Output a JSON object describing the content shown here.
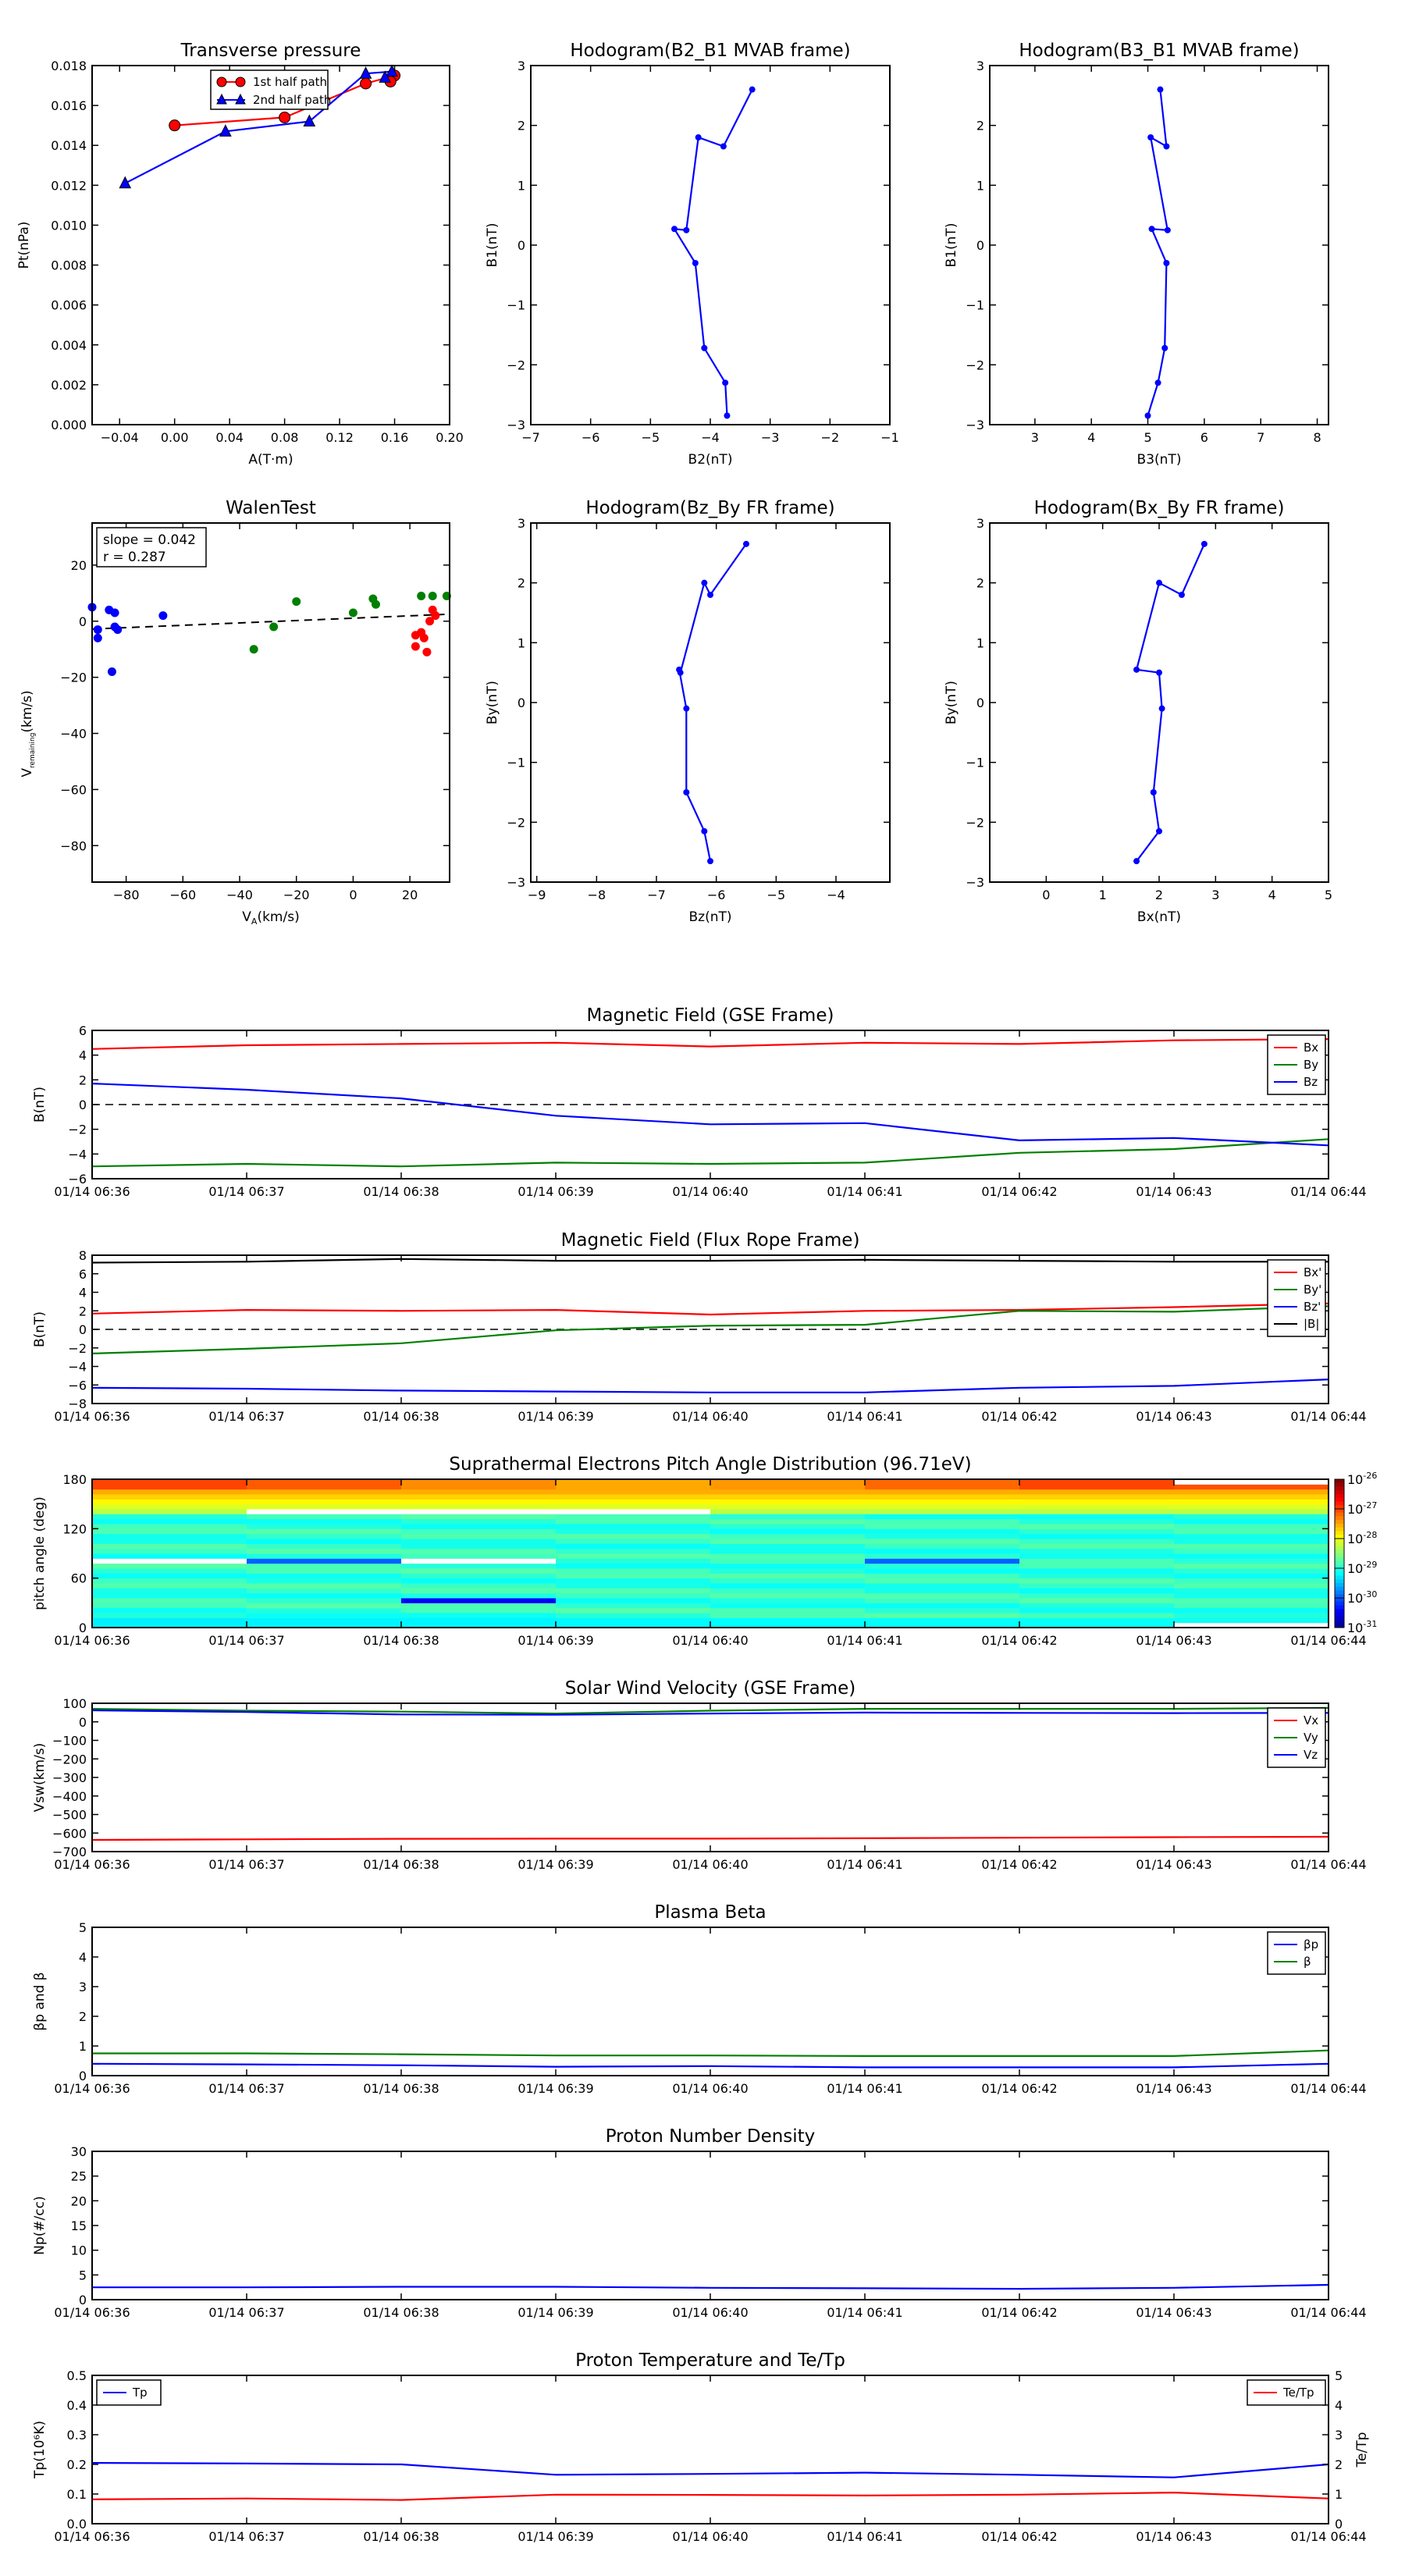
{
  "chart_data": [
    {
      "id": "pt",
      "type": "line",
      "title": "Transverse pressure",
      "xlabel": "A(T·m)",
      "ylabel": "Pt(nPa)",
      "xlim": [
        -0.06,
        0.2
      ],
      "ylim": [
        0,
        0.018
      ],
      "xticks": [
        -0.04,
        0.0,
        0.04,
        0.08,
        0.12,
        0.16,
        0.2
      ],
      "xtick_labels": [
        "−0.04",
        "0.00",
        "0.04",
        "0.08",
        "0.12",
        "0.16",
        "0.20"
      ],
      "yticks": [
        0,
        0.002,
        0.004,
        0.006,
        0.008,
        0.01,
        0.012,
        0.014,
        0.016,
        0.018
      ],
      "ytick_labels": [
        "0.000",
        "0.002",
        "0.004",
        "0.006",
        "0.008",
        "0.010",
        "0.012",
        "0.014",
        "0.016",
        "0.018"
      ],
      "legend_position": "top-right",
      "series": [
        {
          "name": "1st half path",
          "color": "#ff0000",
          "marker": "circle",
          "x": [
            0.0,
            0.08,
            0.139,
            0.16,
            0.157
          ],
          "y": [
            0.015,
            0.0154,
            0.0171,
            0.0175,
            0.0172
          ]
        },
        {
          "name": "2nd half path",
          "color": "#0000ff",
          "marker": "triangle",
          "x": [
            -0.036,
            0.037,
            0.098,
            0.139,
            0.158,
            0.153
          ],
          "y": [
            0.0121,
            0.0147,
            0.0152,
            0.0176,
            0.0177,
            0.0174
          ]
        }
      ]
    },
    {
      "id": "h1",
      "type": "line",
      "title": "Hodogram(B2_B1 MVAB frame)",
      "xlabel": "B2(nT)",
      "ylabel": "B1(nT)",
      "xlim": [
        -7,
        -1
      ],
      "ylim": [
        -3,
        3
      ],
      "xticks": [
        -7,
        -6,
        -5,
        -4,
        -3,
        -2,
        -1
      ],
      "xtick_labels": [
        "−7",
        "−6",
        "−5",
        "−4",
        "−3",
        "−2",
        "−1"
      ],
      "yticks": [
        -3,
        -2,
        -1,
        0,
        1,
        2,
        3
      ],
      "ytick_labels": [
        "−3",
        "−2",
        "−1",
        "0",
        "1",
        "2",
        "3"
      ],
      "series": [
        {
          "color": "#0000ff",
          "marker": "dot",
          "x": [
            -3.3,
            -3.78,
            -4.2,
            -4.4,
            -4.6,
            -4.25,
            -4.1,
            -3.75,
            -3.72
          ],
          "y": [
            2.6,
            1.65,
            1.8,
            0.25,
            0.27,
            -0.3,
            -1.72,
            -2.3,
            -2.85
          ]
        }
      ]
    },
    {
      "id": "h2",
      "type": "line",
      "title": "Hodogram(B3_B1 MVAB frame)",
      "xlabel": "B3(nT)",
      "ylabel": "B1(nT)",
      "xlim": [
        2.2,
        8.2
      ],
      "ylim": [
        -3,
        3
      ],
      "xticks": [
        3,
        4,
        5,
        6,
        7,
        8
      ],
      "xtick_labels": [
        "3",
        "4",
        "5",
        "6",
        "7",
        "8"
      ],
      "yticks": [
        -3,
        -2,
        -1,
        0,
        1,
        2,
        3
      ],
      "ytick_labels": [
        "−3",
        "−2",
        "−1",
        "0",
        "1",
        "2",
        "3"
      ],
      "series": [
        {
          "color": "#0000ff",
          "marker": "dot",
          "x": [
            5.22,
            5.33,
            5.05,
            5.35,
            5.07,
            5.33,
            5.3,
            5.18,
            5.0
          ],
          "y": [
            2.6,
            1.65,
            1.8,
            0.25,
            0.27,
            -0.3,
            -1.72,
            -2.3,
            -2.85
          ]
        }
      ]
    },
    {
      "id": "walen",
      "type": "scatter",
      "title": "WalenTest",
      "xlabel": "V",
      "xlabel_sub": "A",
      "xlabel_tail": "(km/s)",
      "ylabel": "V",
      "ylabel_sub": "remaining",
      "ylabel_tail": "(km/s)",
      "xlim": [
        -92,
        34
      ],
      "ylim": [
        -93,
        35
      ],
      "xticks": [
        -80,
        -60,
        -40,
        -20,
        0,
        20
      ],
      "xtick_labels": [
        "−80",
        "−60",
        "−40",
        "−20",
        "0",
        "20"
      ],
      "yticks": [
        -80,
        -60,
        -40,
        -20,
        0,
        20
      ],
      "ytick_labels": [
        "−80",
        "−60",
        "−40",
        "−20",
        "0",
        "20"
      ],
      "annotation": [
        "slope = 0.042",
        "r = 0.287"
      ],
      "fit_line": {
        "x": [
          -92,
          34
        ],
        "y": [
          -2.8,
          2.5
        ]
      },
      "series": [
        {
          "color": "#0000ff",
          "x": [
            -92,
            -90,
            -90,
            -86,
            -84,
            -84,
            -83,
            -85,
            -67
          ],
          "y": [
            5,
            -3,
            -6,
            4,
            3,
            -2,
            -3,
            -18,
            2
          ]
        },
        {
          "color": "#008000",
          "x": [
            -35,
            -28,
            -20,
            0,
            7,
            8,
            24,
            28,
            33
          ],
          "y": [
            -10,
            -2,
            7,
            3,
            8,
            6,
            9,
            9,
            9
          ]
        },
        {
          "color": "#ff0000",
          "x": [
            22,
            22,
            24,
            25,
            26,
            27,
            28,
            29
          ],
          "y": [
            -5,
            -9,
            -4,
            -6,
            -11,
            0,
            4,
            2
          ]
        }
      ]
    },
    {
      "id": "h3",
      "type": "line",
      "title": "Hodogram(Bz_By FR frame)",
      "xlabel": "Bz(nT)",
      "ylabel": "By(nT)",
      "xlim": [
        -9.1,
        -3.1
      ],
      "ylim": [
        -3,
        3
      ],
      "xticks": [
        -9,
        -8,
        -7,
        -6,
        -5,
        -4
      ],
      "xtick_labels": [
        "−9",
        "−8",
        "−7",
        "−6",
        "−5",
        "−4"
      ],
      "yticks": [
        -3,
        -2,
        -1,
        0,
        1,
        2,
        3
      ],
      "ytick_labels": [
        "−3",
        "−2",
        "−1",
        "0",
        "1",
        "2",
        "3"
      ],
      "series": [
        {
          "color": "#0000ff",
          "marker": "dot",
          "x": [
            -5.5,
            -6.1,
            -6.2,
            -6.6,
            -6.62,
            -6.5,
            -6.5,
            -6.2,
            -6.1
          ],
          "y": [
            2.65,
            1.8,
            2.0,
            0.5,
            0.55,
            -0.1,
            -1.5,
            -2.15,
            -2.65
          ]
        }
      ]
    },
    {
      "id": "h4",
      "type": "line",
      "title": "Hodogram(Bx_By FR frame)",
      "xlabel": "Bx(nT)",
      "ylabel": "By(nT)",
      "xlim": [
        -1,
        5
      ],
      "ylim": [
        -3,
        3
      ],
      "xticks": [
        0,
        1,
        2,
        3,
        4,
        5
      ],
      "xtick_labels": [
        "0",
        "1",
        "2",
        "3",
        "4",
        "5"
      ],
      "yticks": [
        -3,
        -2,
        -1,
        0,
        1,
        2,
        3
      ],
      "ytick_labels": [
        "−3",
        "−2",
        "−1",
        "0",
        "1",
        "2",
        "3"
      ],
      "series": [
        {
          "color": "#0000ff",
          "marker": "dot",
          "x": [
            2.8,
            2.4,
            2.0,
            1.6,
            2.0,
            2.05,
            1.9,
            2.0,
            1.6
          ],
          "y": [
            2.65,
            1.8,
            2.0,
            0.55,
            0.5,
            -0.1,
            -1.5,
            -2.15,
            -2.65
          ]
        }
      ]
    },
    {
      "id": "bgse",
      "type": "line",
      "title": "Magnetic Field (GSE Frame)",
      "ylabel": "B(nT)",
      "ylim": [
        -6,
        6
      ],
      "yticks": [
        -6,
        -4,
        -2,
        0,
        2,
        4,
        6
      ],
      "ytick_labels": [
        "−6",
        "−4",
        "−2",
        "0",
        "2",
        "4",
        "6"
      ],
      "xticks": [
        0,
        1,
        2,
        3,
        4,
        5,
        6,
        7,
        8
      ],
      "zero_line": true,
      "legend_position": "right",
      "series": [
        {
          "name": "Bx",
          "color": "#ff0000",
          "values": [
            4.5,
            4.8,
            4.9,
            5.0,
            4.7,
            5.0,
            4.9,
            5.2,
            5.3
          ]
        },
        {
          "name": "By",
          "color": "#008000",
          "values": [
            -5.0,
            -4.8,
            -5.0,
            -4.7,
            -4.8,
            -4.7,
            -3.9,
            -3.6,
            -2.8
          ]
        },
        {
          "name": "Bz",
          "color": "#0000ff",
          "values": [
            1.7,
            1.2,
            0.5,
            -0.9,
            -1.6,
            -1.5,
            -2.9,
            -2.7,
            -3.3
          ]
        }
      ]
    },
    {
      "id": "bfr",
      "type": "line",
      "title": "Magnetic Field (Flux Rope Frame)",
      "ylabel": "B(nT)",
      "ylim": [
        -8,
        8
      ],
      "yticks": [
        -8,
        -6,
        -4,
        -2,
        0,
        2,
        4,
        6,
        8
      ],
      "ytick_labels": [
        "−8",
        "−6",
        "−4",
        "−2",
        "0",
        "2",
        "4",
        "6",
        "8"
      ],
      "xticks": [
        0,
        1,
        2,
        3,
        4,
        5,
        6,
        7,
        8
      ],
      "zero_line": true,
      "legend_position": "right",
      "series": [
        {
          "name": "Bx'",
          "color": "#ff0000",
          "values": [
            1.7,
            2.1,
            2.0,
            2.1,
            1.6,
            2.0,
            2.1,
            2.4,
            2.8
          ]
        },
        {
          "name": "By'",
          "color": "#008000",
          "values": [
            -2.6,
            -2.1,
            -1.5,
            -0.1,
            0.4,
            0.5,
            2.0,
            1.9,
            2.5
          ]
        },
        {
          "name": "Bz'",
          "color": "#0000ff",
          "values": [
            -6.3,
            -6.4,
            -6.6,
            -6.7,
            -6.8,
            -6.8,
            -6.3,
            -6.1,
            -5.4
          ]
        },
        {
          "name": "|B|",
          "color": "#000000",
          "values": [
            7.2,
            7.3,
            7.6,
            7.4,
            7.4,
            7.5,
            7.4,
            7.3,
            7.3
          ]
        }
      ]
    },
    {
      "id": "pad",
      "type": "heatmap",
      "title": "Suprathermal Electrons Pitch Angle Distribution (96.71eV)",
      "ylabel": "pitch angle (deg)",
      "ylim": [
        0,
        180
      ],
      "yticks": [
        0,
        60,
        120,
        180
      ],
      "ytick_labels": [
        "0",
        "60",
        "120",
        "180"
      ],
      "xticks": [
        0,
        1,
        2,
        3,
        4,
        5,
        6,
        7,
        8
      ],
      "colorbar_ticks": [
        "10",
        "10",
        "10",
        "10",
        "10",
        "10"
      ],
      "colorbar_exponents": [
        "-26",
        "-27",
        "-28",
        "-29",
        "-30",
        "-31"
      ],
      "colorbar_range": [
        -31,
        -26
      ]
    },
    {
      "id": "vsw",
      "type": "line",
      "title": "Solar Wind Velocity (GSE Frame)",
      "ylabel": "Vsw(km/s)",
      "ylim": [
        -700,
        100
      ],
      "yticks": [
        -700,
        -600,
        -500,
        -400,
        -300,
        -200,
        -100,
        0,
        100
      ],
      "ytick_labels": [
        "−700",
        "−600",
        "−500",
        "−400",
        "−300",
        "−200",
        "−100",
        "0",
        "100"
      ],
      "xticks": [
        0,
        1,
        2,
        3,
        4,
        5,
        6,
        7,
        8
      ],
      "legend_position": "right",
      "series": [
        {
          "name": "Vx",
          "color": "#ff0000",
          "values": [
            -637,
            -634,
            -631,
            -630,
            -630,
            -628,
            -625,
            -622,
            -620
          ]
        },
        {
          "name": "Vy",
          "color": "#008000",
          "values": [
            70,
            60,
            55,
            45,
            60,
            70,
            70,
            70,
            75
          ]
        },
        {
          "name": "Vz",
          "color": "#0000ff",
          "values": [
            62,
            53,
            40,
            38,
            45,
            50,
            48,
            47,
            48
          ]
        }
      ]
    },
    {
      "id": "beta",
      "type": "line",
      "title": "Plasma Beta",
      "ylabel": "βp and β",
      "ylim": [
        0,
        5
      ],
      "yticks": [
        0,
        1,
        2,
        3,
        4,
        5
      ],
      "ytick_labels": [
        "0",
        "1",
        "2",
        "3",
        "4",
        "5"
      ],
      "xticks": [
        0,
        1,
        2,
        3,
        4,
        5,
        6,
        7,
        8
      ],
      "legend_position": "top-right",
      "series": [
        {
          "name": "βp",
          "color": "#0000ff",
          "values": [
            0.4,
            0.38,
            0.35,
            0.3,
            0.32,
            0.28,
            0.28,
            0.28,
            0.4
          ]
        },
        {
          "name": "β",
          "color": "#008000",
          "values": [
            0.75,
            0.75,
            0.72,
            0.68,
            0.68,
            0.66,
            0.66,
            0.66,
            0.85
          ]
        }
      ]
    },
    {
      "id": "np",
      "type": "line",
      "title": "Proton Number Density",
      "ylabel": "Np(#/cc)",
      "ylim": [
        0,
        30
      ],
      "yticks": [
        0,
        5,
        10,
        15,
        20,
        25,
        30
      ],
      "ytick_labels": [
        "0",
        "5",
        "10",
        "15",
        "20",
        "25",
        "30"
      ],
      "xticks": [
        0,
        1,
        2,
        3,
        4,
        5,
        6,
        7,
        8
      ],
      "series": [
        {
          "color": "#0000ff",
          "values": [
            2.5,
            2.5,
            2.6,
            2.6,
            2.4,
            2.3,
            2.2,
            2.4,
            3.0
          ]
        }
      ]
    },
    {
      "id": "tp",
      "type": "line",
      "title": "Proton Temperature and Te/Tp",
      "ylabel": "Tp(10⁶K)",
      "ylabel_right": "Te/Tp",
      "ylim": [
        0,
        0.5
      ],
      "yticks": [
        0,
        0.1,
        0.2,
        0.3,
        0.4,
        0.5
      ],
      "ytick_labels": [
        "0.0",
        "0.1",
        "0.2",
        "0.3",
        "0.4",
        "0.5"
      ],
      "y2lim": [
        0,
        5
      ],
      "y2ticks": [
        0,
        1,
        2,
        3,
        4,
        5
      ],
      "y2tick_labels": [
        "0",
        "1",
        "2",
        "3",
        "4",
        "5"
      ],
      "xticks": [
        0,
        1,
        2,
        3,
        4,
        5,
        6,
        7,
        8
      ],
      "series": [
        {
          "name": "Tp",
          "color": "#0000ff",
          "axis": "left",
          "values": [
            0.205,
            0.203,
            0.2,
            0.165,
            0.168,
            0.172,
            0.165,
            0.156,
            0.2
          ]
        },
        {
          "name": "Te/Tp",
          "color": "#ff0000",
          "axis": "right",
          "values": [
            0.82,
            0.85,
            0.8,
            0.98,
            0.97,
            0.95,
            0.98,
            1.05,
            0.85
          ]
        }
      ]
    }
  ],
  "time_tick_labels": [
    "01/14 06:36",
    "01/14 06:37",
    "01/14 06:38",
    "01/14 06:39",
    "01/14 06:40",
    "01/14 06:41",
    "01/14 06:42",
    "01/14 06:43",
    "01/14 06:44"
  ],
  "colors": {
    "red": "#ff0000",
    "green": "#008000",
    "blue": "#0000ff",
    "black": "#000000"
  }
}
